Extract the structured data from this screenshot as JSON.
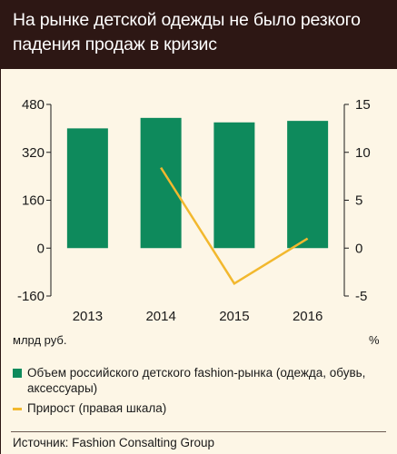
{
  "title": "На рынке детской одежды не было резкого падения продаж в кризис",
  "units": {
    "left": "млрд руб.",
    "right": "%"
  },
  "legend": {
    "bar_label": "Объем российского детского fashion-рынка (одежда, обувь, аксессуары)",
    "line_label": "Прирост (правая шкала)"
  },
  "source": "Источник: Fashion Consalting Group",
  "colors": {
    "bar": "#0e8a5c",
    "line": "#f2b82e",
    "header": "#2d1714",
    "background": "#fdf6e6",
    "grid": "#1a1a1a"
  },
  "chart_data": {
    "type": "bar",
    "categories": [
      "2013",
      "2014",
      "2015",
      "2016"
    ],
    "series": [
      {
        "name": "Объем российского детского fashion-рынка (одежда, обувь, аксессуары)",
        "type": "bar",
        "axis": "left",
        "values": [
          400,
          435,
          420,
          425
        ]
      },
      {
        "name": "Прирост (правая шкала)",
        "type": "line",
        "axis": "right",
        "values": [
          null,
          8.4,
          -3.7,
          1.0
        ]
      }
    ],
    "left_axis": {
      "ylim": [
        -160,
        480
      ],
      "ticks": [
        "480",
        "320",
        "160",
        "0",
        "-160"
      ],
      "tick_values": [
        480,
        320,
        160,
        0,
        -160
      ]
    },
    "right_axis": {
      "ylim": [
        -5,
        15
      ],
      "ticks": [
        "15",
        "10",
        "5",
        "0",
        "-5"
      ],
      "tick_values": [
        15,
        10,
        5,
        0,
        -5
      ]
    },
    "grid": false,
    "legend_position": "bottom"
  }
}
